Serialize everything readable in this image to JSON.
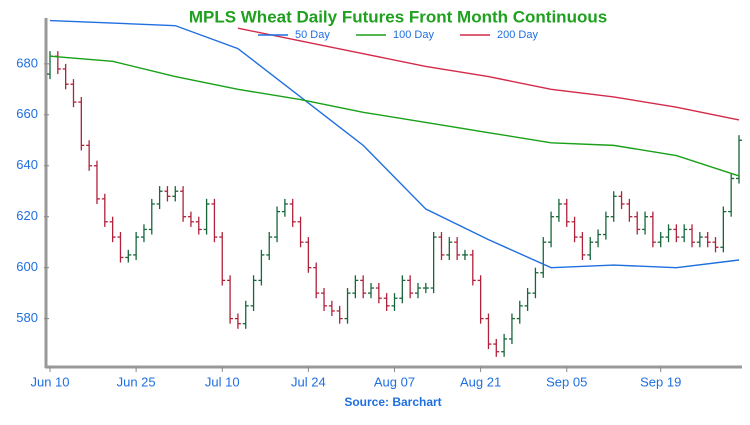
{
  "chart_data": {
    "type": "ohlc",
    "title": "MPLS Wheat Daily Futures Front Month Continuous",
    "source": "Source: Barchart",
    "categories": [
      "Jun 10",
      null,
      null,
      null,
      null,
      null,
      null,
      null,
      null,
      null,
      null,
      "Jun 25",
      null,
      null,
      null,
      null,
      null,
      null,
      null,
      null,
      null,
      null,
      "Jul 10",
      null,
      null,
      null,
      null,
      null,
      null,
      null,
      null,
      null,
      null,
      "Jul 24",
      null,
      null,
      null,
      null,
      null,
      null,
      null,
      null,
      null,
      null,
      "Aug 07",
      null,
      null,
      null,
      null,
      null,
      null,
      null,
      null,
      null,
      null,
      "Aug 21",
      null,
      null,
      null,
      null,
      null,
      null,
      null,
      null,
      null,
      null,
      "Sep 05",
      null,
      null,
      null,
      null,
      null,
      null,
      null,
      null,
      null,
      null,
      null,
      "Sep 19",
      null,
      null,
      null,
      null,
      null,
      null,
      null,
      null,
      null,
      null
    ],
    "open": [
      676,
      683,
      678,
      672,
      665,
      648,
      640,
      627,
      618,
      612,
      604,
      605,
      612,
      615,
      625,
      630,
      628,
      630,
      620,
      618,
      615,
      625,
      612,
      595,
      580,
      578,
      585,
      595,
      605,
      612,
      622,
      625,
      618,
      610,
      600,
      590,
      585,
      583,
      580,
      590,
      595,
      590,
      592,
      588,
      585,
      588,
      595,
      590,
      592,
      592,
      612,
      605,
      610,
      605,
      605,
      595,
      580,
      570,
      567,
      572,
      580,
      585,
      590,
      598,
      610,
      620,
      625,
      618,
      612,
      605,
      610,
      613,
      620,
      628,
      625,
      620,
      615,
      620,
      610,
      612,
      615,
      612,
      615,
      610,
      612,
      610,
      608,
      622,
      635
    ],
    "high": [
      685,
      685,
      680,
      674,
      667,
      650,
      642,
      629,
      620,
      614,
      607,
      614,
      617,
      627,
      632,
      632,
      632,
      632,
      622,
      620,
      627,
      627,
      614,
      597,
      582,
      587,
      597,
      607,
      614,
      624,
      627,
      627,
      620,
      612,
      602,
      592,
      587,
      585,
      592,
      597,
      597,
      594,
      594,
      590,
      590,
      597,
      597,
      594,
      594,
      614,
      614,
      612,
      612,
      607,
      607,
      597,
      582,
      572,
      574,
      582,
      587,
      592,
      600,
      612,
      622,
      627,
      627,
      620,
      614,
      612,
      615,
      622,
      630,
      630,
      627,
      622,
      622,
      622,
      614,
      617,
      617,
      617,
      617,
      614,
      614,
      612,
      624,
      637,
      652
    ],
    "low": [
      674,
      676,
      670,
      663,
      646,
      638,
      625,
      616,
      610,
      602,
      602,
      603,
      610,
      613,
      623,
      626,
      626,
      618,
      616,
      613,
      613,
      610,
      593,
      578,
      576,
      576,
      583,
      593,
      603,
      610,
      620,
      616,
      608,
      598,
      588,
      583,
      581,
      578,
      578,
      588,
      588,
      588,
      586,
      583,
      583,
      586,
      588,
      588,
      590,
      590,
      603,
      603,
      603,
      603,
      593,
      578,
      568,
      565,
      565,
      570,
      578,
      583,
      588,
      596,
      608,
      618,
      616,
      610,
      603,
      603,
      608,
      611,
      618,
      623,
      618,
      613,
      613,
      608,
      608,
      610,
      610,
      610,
      608,
      608,
      608,
      606,
      606,
      620,
      633
    ],
    "close": [
      683,
      678,
      672,
      665,
      648,
      640,
      627,
      618,
      612,
      604,
      605,
      612,
      615,
      625,
      630,
      628,
      630,
      620,
      618,
      615,
      625,
      612,
      595,
      580,
      578,
      585,
      595,
      605,
      612,
      622,
      625,
      618,
      610,
      600,
      590,
      585,
      583,
      580,
      590,
      595,
      590,
      592,
      588,
      585,
      588,
      595,
      590,
      592,
      592,
      612,
      605,
      610,
      605,
      605,
      595,
      580,
      570,
      567,
      572,
      580,
      585,
      590,
      598,
      610,
      620,
      625,
      618,
      612,
      605,
      610,
      613,
      620,
      628,
      625,
      620,
      615,
      620,
      610,
      612,
      615,
      612,
      615,
      610,
      612,
      610,
      608,
      622,
      635,
      650
    ],
    "up_color": "#17663a",
    "down_color": "#b0213a",
    "lines": [
      {
        "name": "50 Day",
        "color": "#1f6fe0",
        "x": [
          0,
          8,
          16,
          24,
          32,
          40,
          48,
          56,
          64,
          72,
          80,
          88
        ],
        "values": [
          697,
          696,
          695,
          686,
          667,
          648,
          623,
          611,
          600,
          601,
          600,
          603
        ]
      },
      {
        "name": "100 Day",
        "color": "#19a019",
        "x": [
          0,
          8,
          16,
          24,
          32,
          40,
          48,
          56,
          64,
          72,
          80,
          88
        ],
        "values": [
          683,
          681,
          675,
          670,
          666,
          661,
          657,
          653,
          649,
          648,
          644,
          636
        ]
      },
      {
        "name": "200 Day",
        "color": "#d42a4a",
        "x": [
          0,
          8,
          16,
          24,
          32,
          40,
          48,
          56,
          64,
          72,
          80,
          88
        ],
        "values": [
          null,
          null,
          null,
          694,
          689,
          684,
          679,
          675,
          670,
          667,
          663,
          658
        ]
      }
    ],
    "ylim": [
      561,
      698
    ],
    "yticks": [
      580,
      600,
      620,
      640,
      660,
      680
    ]
  }
}
